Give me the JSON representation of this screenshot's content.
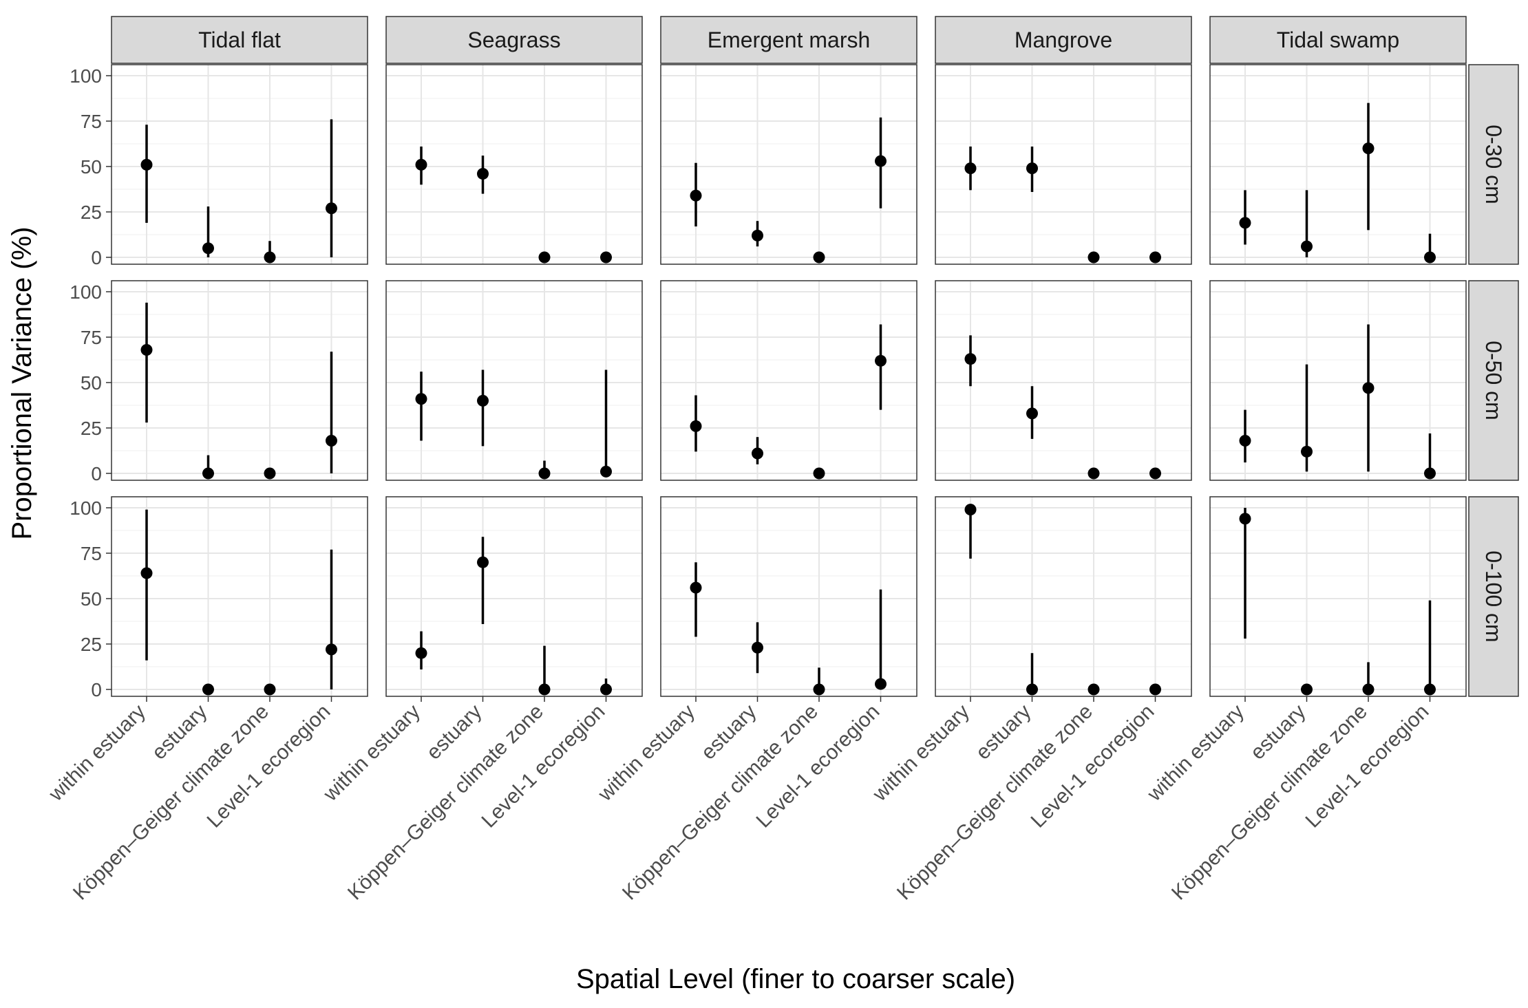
{
  "chart_data": {
    "type": "scatter",
    "variant": "faceted point-range",
    "xlabel": "Spatial Level (finer to coarser scale)",
    "ylabel": "Proportional Variance (%)",
    "ylim": [
      0,
      100
    ],
    "yticks": [
      0,
      25,
      50,
      75,
      100
    ],
    "grid": true,
    "legend": "none",
    "categories": [
      "within estuary",
      "estuary",
      "Köppen–Geiger climate zone",
      "Level-1 ecoregion"
    ],
    "columns": [
      "Tidal flat",
      "Seagrass",
      "Emergent marsh",
      "Mangrove",
      "Tidal swamp"
    ],
    "rows": [
      "0-30 cm",
      "0-50 cm",
      "0-100 cm"
    ],
    "panels": [
      [
        {
          "values": [
            51,
            5,
            0,
            27
          ],
          "lower": [
            19,
            0,
            0,
            0
          ],
          "upper": [
            73,
            28,
            9,
            76
          ]
        },
        {
          "values": [
            51,
            46,
            0,
            0
          ],
          "lower": [
            40,
            35,
            0,
            0
          ],
          "upper": [
            61,
            56,
            0,
            0
          ]
        },
        {
          "values": [
            34,
            12,
            0,
            53
          ],
          "lower": [
            17,
            6,
            0,
            27
          ],
          "upper": [
            52,
            20,
            0,
            77
          ]
        },
        {
          "values": [
            49,
            49,
            0,
            0
          ],
          "lower": [
            37,
            36,
            0,
            0
          ],
          "upper": [
            61,
            61,
            0,
            0
          ]
        },
        {
          "values": [
            19,
            6,
            60,
            0
          ],
          "lower": [
            7,
            0,
            15,
            0
          ],
          "upper": [
            37,
            37,
            85,
            13
          ]
        }
      ],
      [
        {
          "values": [
            68,
            0,
            0,
            18
          ],
          "lower": [
            28,
            0,
            0,
            0
          ],
          "upper": [
            94,
            10,
            0,
            67
          ]
        },
        {
          "values": [
            41,
            40,
            0,
            1
          ],
          "lower": [
            18,
            15,
            0,
            0
          ],
          "upper": [
            56,
            57,
            7,
            57
          ]
        },
        {
          "values": [
            26,
            11,
            0,
            62
          ],
          "lower": [
            12,
            5,
            0,
            35
          ],
          "upper": [
            43,
            20,
            0,
            82
          ]
        },
        {
          "values": [
            63,
            33,
            0,
            0
          ],
          "lower": [
            48,
            19,
            0,
            0
          ],
          "upper": [
            76,
            48,
            0,
            0
          ]
        },
        {
          "values": [
            18,
            12,
            47,
            0
          ],
          "lower": [
            6,
            1,
            1,
            0
          ],
          "upper": [
            35,
            60,
            82,
            22
          ]
        }
      ],
      [
        {
          "values": [
            64,
            0,
            0,
            22
          ],
          "lower": [
            16,
            0,
            0,
            0
          ],
          "upper": [
            99,
            0,
            0,
            77
          ]
        },
        {
          "values": [
            20,
            70,
            0,
            0
          ],
          "lower": [
            11,
            36,
            0,
            0
          ],
          "upper": [
            32,
            84,
            24,
            6
          ]
        },
        {
          "values": [
            56,
            23,
            0,
            3
          ],
          "lower": [
            29,
            9,
            0,
            0
          ],
          "upper": [
            70,
            37,
            12,
            55
          ]
        },
        {
          "values": [
            99,
            0,
            0,
            0
          ],
          "lower": [
            72,
            0,
            0,
            0
          ],
          "upper": [
            100,
            20,
            0,
            0
          ]
        },
        {
          "values": [
            94,
            0,
            0,
            0
          ],
          "lower": [
            28,
            0,
            0,
            0
          ],
          "upper": [
            100,
            0,
            15,
            49
          ]
        }
      ]
    ]
  }
}
